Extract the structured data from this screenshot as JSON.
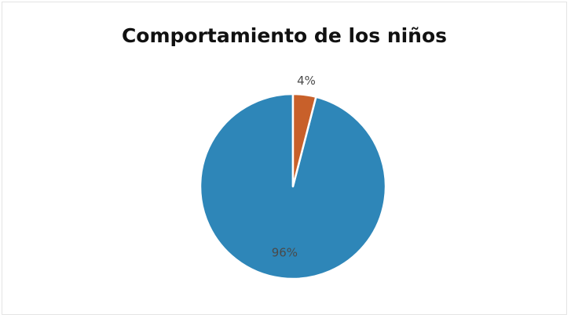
{
  "chart_data": {
    "type": "pie",
    "title": "Comportamiento de los niños",
    "slices": [
      {
        "value": 96,
        "label": "96%",
        "color": "#2e86b8"
      },
      {
        "value": 4,
        "label": "4%",
        "color": "#c8602a"
      }
    ],
    "start_angle_deg": 0,
    "direction": "counterclockwise"
  }
}
